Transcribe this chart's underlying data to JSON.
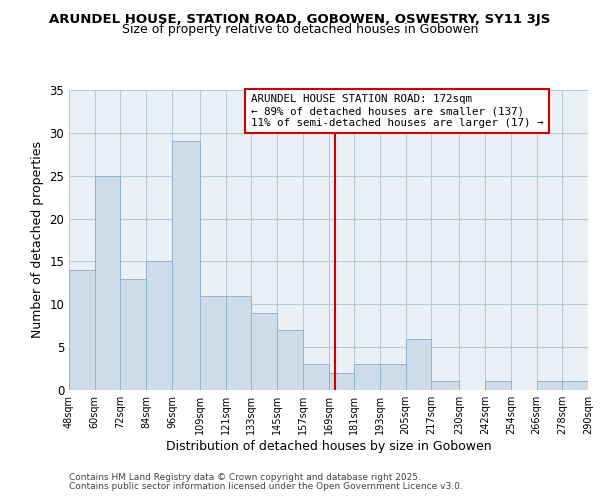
{
  "title": "ARUNDEL HOUSE, STATION ROAD, GOBOWEN, OSWESTRY, SY11 3JS",
  "subtitle": "Size of property relative to detached houses in Gobowen",
  "xlabel": "Distribution of detached houses by size in Gobowen",
  "ylabel": "Number of detached properties",
  "bar_color": "#cddce8",
  "bar_edge_color": "#92b4cc",
  "bins_left": [
    48,
    60,
    72,
    84,
    96,
    109,
    121,
    133,
    145,
    157,
    169,
    181,
    193,
    205,
    217,
    230,
    242,
    254,
    266,
    278
  ],
  "bins_right": [
    60,
    72,
    84,
    96,
    109,
    121,
    133,
    145,
    157,
    169,
    181,
    193,
    205,
    217,
    230,
    242,
    254,
    266,
    278,
    290
  ],
  "counts": [
    14,
    25,
    13,
    15,
    29,
    11,
    11,
    9,
    7,
    3,
    2,
    3,
    3,
    6,
    1,
    0,
    1,
    0,
    1,
    1
  ],
  "tick_labels": [
    "48sqm",
    "60sqm",
    "72sqm",
    "84sqm",
    "96sqm",
    "109sqm",
    "121sqm",
    "133sqm",
    "145sqm",
    "157sqm",
    "169sqm",
    "181sqm",
    "193sqm",
    "205sqm",
    "217sqm",
    "230sqm",
    "242sqm",
    "254sqm",
    "266sqm",
    "278sqm",
    "290sqm"
  ],
  "tick_positions": [
    48,
    60,
    72,
    84,
    96,
    109,
    121,
    133,
    145,
    157,
    169,
    181,
    193,
    205,
    217,
    230,
    242,
    254,
    266,
    278,
    290
  ],
  "vline_x": 172,
  "vline_color": "#cc0000",
  "ylim": [
    0,
    35
  ],
  "yticks": [
    0,
    5,
    10,
    15,
    20,
    25,
    30,
    35
  ],
  "annotation_title": "ARUNDEL HOUSE STATION ROAD: 172sqm",
  "annotation_line1": "← 89% of detached houses are smaller (137)",
  "annotation_line2": "11% of semi-detached houses are larger (17) →",
  "footnote1": "Contains HM Land Registry data © Crown copyright and database right 2025.",
  "footnote2": "Contains public sector information licensed under the Open Government Licence v3.0.",
  "grid_color": "#b8ccd8",
  "background_color": "#eaf0f6",
  "fig_bg_color": "#ffffff"
}
